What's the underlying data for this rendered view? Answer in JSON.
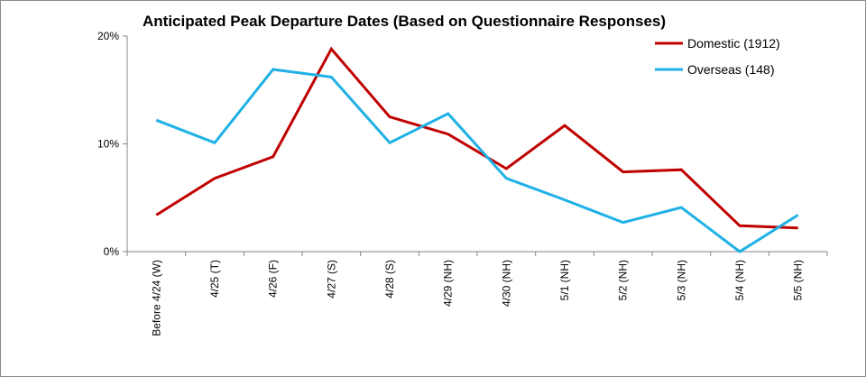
{
  "chart_data": {
    "type": "line",
    "title": "Anticipated Peak Departure Dates (Based on Questionnaire Responses)",
    "xlabel": "",
    "ylabel": "",
    "categories": [
      "Before 4/24 (W)",
      "4/25 (T)",
      "4/26 (F)",
      "4/27 (S)",
      "4/28 (S)",
      "4/29 (NH)",
      "4/30 (NH)",
      "5/1 (NH)",
      "5/2 (NH)",
      "5/3 (NH)",
      "5/4 (NH)",
      "5/5 (NH)"
    ],
    "ylim": [
      0,
      20
    ],
    "yticks": [
      0,
      10,
      20
    ],
    "ytick_labels": [
      "0%",
      "10%",
      "20%"
    ],
    "grid": false,
    "legend_position": "top-right",
    "series": [
      {
        "name": "Domestic (1912)",
        "color": "#c00000",
        "values": [
          3.4,
          6.8,
          8.8,
          18.8,
          12.5,
          10.9,
          7.7,
          11.7,
          7.4,
          7.6,
          2.4,
          2.2
        ]
      },
      {
        "name": "Overseas (148)",
        "color": "#1fb1e6",
        "values": [
          12.2,
          10.1,
          16.9,
          16.2,
          10.1,
          12.8,
          6.8,
          4.8,
          2.7,
          4.1,
          0.0,
          3.4
        ]
      }
    ]
  }
}
